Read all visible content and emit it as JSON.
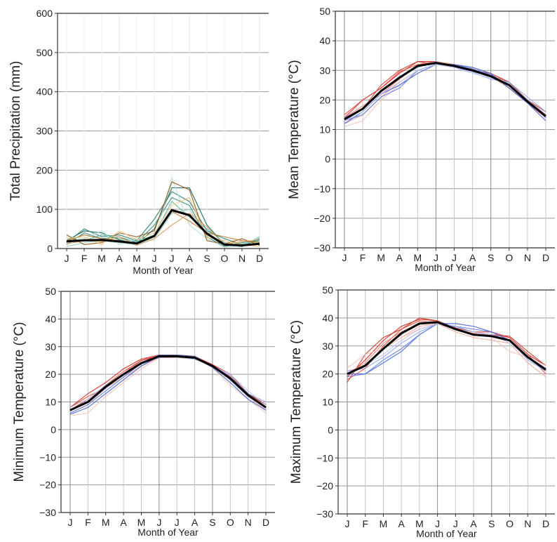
{
  "figure": {
    "month_labels": [
      "J",
      "F",
      "M",
      "A",
      "M",
      "J",
      "J",
      "A",
      "S",
      "O",
      "N",
      "D"
    ],
    "xlabel": "Month of Year"
  },
  "colors": {
    "mean_line": "#000000",
    "precip_ensemble": [
      "#0b5e4f",
      "#1f7a68",
      "#2e8b77",
      "#5fb3a0",
      "#8fcfbf",
      "#b4e0d2",
      "#8c4f12",
      "#b8732a",
      "#d99a4e",
      "#f0c27e"
    ],
    "temp_ensemble": [
      "#d62020",
      "#c0392b",
      "#e8493c",
      "#f08070",
      "#f3a595",
      "#f6c2b6",
      "#3c5fd6",
      "#5f7be0",
      "#8ea3ee",
      "#b8c6f4"
    ]
  },
  "chart_data": [
    {
      "id": "precipitation",
      "type": "line",
      "title": "",
      "xlabel": "Month of Year",
      "ylabel": "Total Precipitation (mm)",
      "categories": [
        "J",
        "F",
        "M",
        "A",
        "M",
        "J",
        "J",
        "A",
        "S",
        "O",
        "N",
        "D"
      ],
      "ylim": [
        0,
        600
      ],
      "yticks": [
        0,
        100,
        200,
        300,
        400,
        500,
        600
      ],
      "grid": "horizontal",
      "legend": "none",
      "ensemble_family": "precip",
      "mean_series": [
        18,
        21,
        22,
        18,
        13,
        32,
        98,
        85,
        38,
        10,
        8,
        12
      ],
      "ensemble_series": [
        [
          20,
          45,
          40,
          22,
          12,
          50,
          155,
          155,
          60,
          10,
          5,
          25
        ],
        [
          15,
          50,
          30,
          35,
          20,
          75,
          145,
          120,
          45,
          25,
          10,
          12
        ],
        [
          10,
          40,
          25,
          30,
          15,
          60,
          130,
          110,
          30,
          5,
          15,
          20
        ],
        [
          25,
          20,
          35,
          25,
          18,
          35,
          120,
          80,
          50,
          15,
          5,
          30
        ],
        [
          5,
          15,
          20,
          15,
          10,
          25,
          90,
          100,
          35,
          8,
          12,
          18
        ],
        [
          30,
          25,
          45,
          10,
          25,
          20,
          180,
          60,
          25,
          3,
          8,
          10
        ],
        [
          35,
          10,
          15,
          40,
          30,
          45,
          170,
          150,
          20,
          12,
          25,
          8
        ],
        [
          20,
          35,
          25,
          20,
          12,
          30,
          95,
          70,
          40,
          30,
          20,
          15
        ],
        [
          12,
          20,
          18,
          30,
          8,
          25,
          60,
          90,
          55,
          10,
          18,
          22
        ],
        [
          25,
          30,
          10,
          45,
          22,
          40,
          110,
          130,
          28,
          20,
          10,
          5
        ]
      ]
    },
    {
      "id": "mean_temperature",
      "type": "line",
      "title": "",
      "xlabel": "Month of Year",
      "ylabel": "Mean Temperature (°C)",
      "categories": [
        "J",
        "F",
        "M",
        "A",
        "M",
        "J",
        "J",
        "A",
        "S",
        "O",
        "N",
        "D"
      ],
      "ylim": [
        -30,
        50
      ],
      "yticks": [
        -30,
        -20,
        -10,
        0,
        10,
        20,
        30,
        40,
        50
      ],
      "grid": "both",
      "legend": "none",
      "ensemble_family": "temp",
      "mean_series": [
        13.5,
        17,
        23,
        27.5,
        31.5,
        32.5,
        31.5,
        30,
        28,
        25,
        19.5,
        14.5
      ],
      "ensemble_series": [
        [
          14,
          20,
          24,
          29,
          33,
          33,
          31,
          30,
          29,
          26,
          20,
          16
        ],
        [
          13,
          17,
          25,
          30,
          33,
          32,
          31.5,
          30,
          28.5,
          26,
          20,
          15
        ],
        [
          15,
          20,
          24,
          29.5,
          32,
          33,
          31,
          30.5,
          28,
          25,
          19,
          14
        ],
        [
          14,
          18,
          22,
          27,
          32,
          33,
          32,
          30,
          28,
          24,
          19,
          14
        ],
        [
          12,
          15,
          21,
          26,
          30,
          32,
          31,
          30,
          28,
          24,
          19,
          15
        ],
        [
          11,
          13,
          20,
          25,
          30,
          32,
          32,
          31,
          29,
          25,
          20,
          14
        ],
        [
          12,
          16,
          22,
          25,
          29,
          32,
          32,
          31,
          29,
          24,
          19,
          13
        ],
        [
          13,
          15,
          21,
          24,
          30,
          32,
          32,
          30.5,
          28.5,
          25,
          20,
          14
        ],
        [
          14,
          17,
          23,
          28,
          31,
          33,
          31,
          29.5,
          27,
          26,
          21,
          16
        ],
        [
          13,
          16,
          22,
          26,
          30,
          32,
          31,
          29,
          27.5,
          25.5,
          20,
          15
        ]
      ]
    },
    {
      "id": "minimum_temperature",
      "type": "line",
      "title": "",
      "xlabel": "Month of Year",
      "ylabel": "Minimum Temperature (°C)",
      "categories": [
        "J",
        "F",
        "M",
        "A",
        "M",
        "J",
        "J",
        "A",
        "S",
        "O",
        "N",
        "D"
      ],
      "ylim": [
        -30,
        50
      ],
      "yticks": [
        -30,
        -20,
        -10,
        0,
        10,
        20,
        30,
        40,
        50
      ],
      "grid": "both",
      "legend": "none",
      "ensemble_family": "temp",
      "mean_series": [
        7,
        10,
        15.5,
        20,
        24,
        26.5,
        26.5,
        26,
        23,
        18.5,
        12.5,
        8
      ],
      "ensemble_series": [
        [
          8,
          13,
          17,
          22,
          25.5,
          27,
          27,
          26.5,
          23.5,
          20,
          13,
          9
        ],
        [
          7,
          11,
          16,
          21,
          25,
          26.5,
          27,
          26,
          23,
          19,
          13,
          9
        ],
        [
          8,
          12,
          15,
          20,
          25,
          27,
          26.5,
          26,
          23.5,
          19,
          12,
          8
        ],
        [
          7,
          10,
          16,
          21,
          24,
          26,
          26,
          26,
          23,
          18,
          12,
          8
        ],
        [
          6,
          9,
          15,
          19,
          23,
          26,
          27,
          26,
          23,
          18,
          12,
          7
        ],
        [
          5,
          6,
          12,
          17,
          22,
          26,
          26.5,
          26,
          22.5,
          16,
          11,
          6
        ],
        [
          5.5,
          8,
          13,
          18,
          23,
          26.5,
          26.5,
          26,
          22.5,
          17,
          11,
          7
        ],
        [
          6,
          9,
          14,
          19,
          24,
          27,
          27,
          26.5,
          23,
          18,
          12,
          8
        ],
        [
          7,
          10,
          15,
          20,
          24,
          26,
          26.5,
          25.5,
          23,
          19.5,
          13,
          10
        ],
        [
          8,
          11,
          16,
          20,
          24.5,
          26.5,
          26,
          25.5,
          23,
          20,
          14,
          9
        ]
      ]
    },
    {
      "id": "maximum_temperature",
      "type": "line",
      "title": "",
      "xlabel": "Month of Year",
      "ylabel": "Maximum Temperature (°C)",
      "categories": [
        "J",
        "F",
        "M",
        "A",
        "M",
        "J",
        "J",
        "A",
        "S",
        "O",
        "N",
        "D"
      ],
      "ylim": [
        -30,
        50
      ],
      "yticks": [
        -30,
        -20,
        -10,
        0,
        10,
        20,
        30,
        40,
        50
      ],
      "grid": "both",
      "legend": "none",
      "ensemble_family": "temp",
      "mean_series": [
        20,
        23,
        29,
        34.5,
        38,
        38.5,
        36,
        34,
        33.5,
        32,
        26,
        21.5
      ],
      "ensemble_series": [
        [
          19,
          25,
          32,
          37,
          39.5,
          39,
          36,
          35,
          35,
          33,
          27,
          23
        ],
        [
          17,
          27,
          33,
          36,
          40,
          39,
          36.5,
          35,
          34,
          33.5,
          28,
          23
        ],
        [
          18,
          22,
          30,
          36,
          39,
          38,
          36,
          34,
          34,
          33,
          27,
          20
        ],
        [
          20,
          24,
          31,
          35,
          38,
          39,
          36,
          34.5,
          34,
          32,
          26,
          22
        ],
        [
          21,
          23,
          29,
          33,
          37,
          38,
          35,
          33,
          32,
          31,
          24,
          19
        ],
        [
          22,
          27,
          29,
          33,
          36,
          38,
          36,
          35,
          33,
          28,
          26,
          23
        ],
        [
          20,
          20,
          24,
          28,
          34,
          38,
          38,
          37,
          35,
          32,
          26,
          21
        ],
        [
          19,
          20,
          25,
          29,
          34,
          38,
          37,
          36,
          35,
          32,
          26,
          22
        ],
        [
          21,
          22,
          26,
          31,
          35,
          38,
          37,
          35,
          34,
          32,
          25,
          21
        ],
        [
          20,
          23,
          27,
          32,
          36,
          38,
          36,
          35,
          34,
          31,
          26,
          21
        ]
      ]
    }
  ]
}
